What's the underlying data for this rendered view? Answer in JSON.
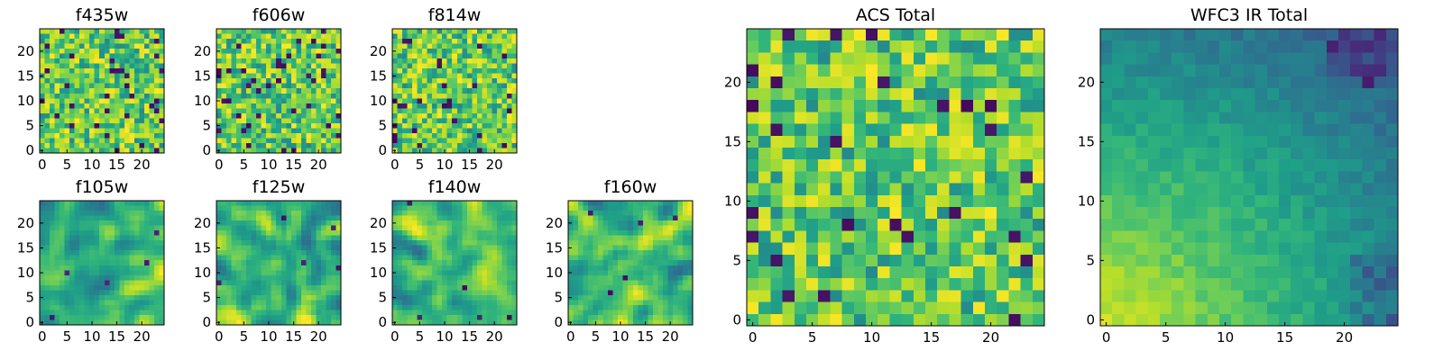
{
  "chart_data": [
    {
      "type": "heatmap",
      "title": "f435w",
      "xticks": [
        "0",
        "5",
        "10",
        "15",
        "20"
      ],
      "yticks": [
        "0",
        "5",
        "10",
        "15",
        "20"
      ],
      "xlim": [
        0,
        25
      ],
      "ylim": [
        0,
        25
      ],
      "grid": false,
      "colormap": "viridis",
      "texture": "pixel-noise"
    },
    {
      "type": "heatmap",
      "title": "f606w",
      "xticks": [
        "0",
        "5",
        "10",
        "15",
        "20"
      ],
      "yticks": [
        "0",
        "5",
        "10",
        "15",
        "20"
      ],
      "xlim": [
        0,
        25
      ],
      "ylim": [
        0,
        25
      ],
      "grid": false,
      "colormap": "viridis",
      "texture": "pixel-noise"
    },
    {
      "type": "heatmap",
      "title": "f814w",
      "xticks": [
        "0",
        "5",
        "10",
        "15",
        "20"
      ],
      "yticks": [
        "0",
        "5",
        "10",
        "15",
        "20"
      ],
      "xlim": [
        0,
        25
      ],
      "ylim": [
        0,
        25
      ],
      "grid": false,
      "colormap": "viridis",
      "texture": "pixel-noise"
    },
    {
      "type": "heatmap",
      "title": "f105w",
      "xticks": [
        "0",
        "5",
        "10",
        "15",
        "20"
      ],
      "yticks": [
        "0",
        "5",
        "10",
        "15",
        "20"
      ],
      "xlim": [
        0,
        25
      ],
      "ylim": [
        0,
        25
      ],
      "grid": false,
      "colormap": "viridis",
      "texture": "smooth-noise"
    },
    {
      "type": "heatmap",
      "title": "f125w",
      "xticks": [
        "0",
        "5",
        "10",
        "15",
        "20"
      ],
      "yticks": [
        "0",
        "5",
        "10",
        "15",
        "20"
      ],
      "xlim": [
        0,
        25
      ],
      "ylim": [
        0,
        25
      ],
      "grid": false,
      "colormap": "viridis",
      "texture": "smooth-noise"
    },
    {
      "type": "heatmap",
      "title": "f140w",
      "xticks": [
        "0",
        "5",
        "10",
        "15",
        "20"
      ],
      "yticks": [
        "0",
        "5",
        "10",
        "15",
        "20"
      ],
      "xlim": [
        0,
        25
      ],
      "ylim": [
        0,
        25
      ],
      "grid": false,
      "colormap": "viridis",
      "texture": "smooth-noise"
    },
    {
      "type": "heatmap",
      "title": "f160w",
      "xticks": [
        "0",
        "5",
        "10",
        "15",
        "20"
      ],
      "yticks": [
        "0",
        "5",
        "10",
        "15",
        "20"
      ],
      "xlim": [
        0,
        25
      ],
      "ylim": [
        0,
        25
      ],
      "grid": false,
      "colormap": "viridis",
      "texture": "smooth-noise"
    },
    {
      "type": "heatmap",
      "title": "ACS Total",
      "xticks": [
        "0",
        "5",
        "10",
        "15",
        "20"
      ],
      "yticks": [
        "0",
        "5",
        "10",
        "15",
        "20"
      ],
      "xlim": [
        0,
        25
      ],
      "ylim": [
        0,
        25
      ],
      "grid": false,
      "colormap": "viridis",
      "texture": "pixel-noise"
    },
    {
      "type": "heatmap",
      "title": "WFC3 IR Total",
      "xticks": [
        "0",
        "5",
        "10",
        "15",
        "20"
      ],
      "yticks": [
        "0",
        "5",
        "10",
        "15",
        "20"
      ],
      "xlim": [
        0,
        25
      ],
      "ylim": [
        0,
        25
      ],
      "grid": false,
      "colormap": "viridis",
      "texture": "gradient-bright-lower-left"
    }
  ],
  "colors": {
    "viridis": [
      "#440154",
      "#482878",
      "#3e4989",
      "#31688e",
      "#26828e",
      "#1f9e89",
      "#35b779",
      "#6ece58",
      "#b5de2b",
      "#fde725"
    ]
  }
}
